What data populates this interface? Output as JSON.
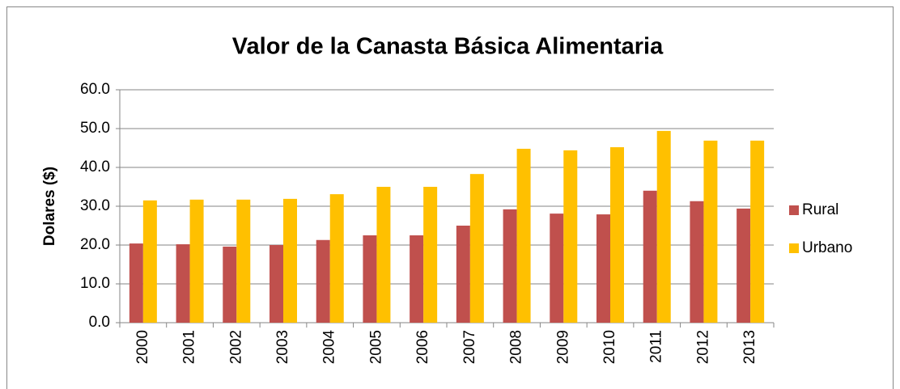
{
  "chart_data": {
    "type": "bar",
    "title": "Valor de la Canasta Básica Alimentaria",
    "y_label": "Dolares ($)",
    "categories": [
      "2000",
      "2001",
      "2002",
      "2003",
      "2004",
      "2005",
      "2006",
      "2007",
      "2008",
      "2009",
      "2010",
      "2011",
      "2012",
      "2013"
    ],
    "series": [
      {
        "name": "Rural",
        "color": "#c0504d",
        "values": [
          20.4,
          20.2,
          19.6,
          20.0,
          21.3,
          22.5,
          22.5,
          25.0,
          29.2,
          28.1,
          27.9,
          34.0,
          31.3,
          29.4
        ]
      },
      {
        "name": "Urbano",
        "color": "#ffc000",
        "values": [
          31.5,
          31.7,
          31.7,
          31.9,
          33.1,
          35.0,
          35.0,
          38.3,
          44.8,
          44.4,
          45.2,
          49.4,
          46.9,
          46.9
        ]
      }
    ],
    "ylim": [
      0,
      60
    ],
    "yticks": [
      {
        "value": 0,
        "label": "0.0"
      },
      {
        "value": 10,
        "label": "10.0"
      },
      {
        "value": 20,
        "label": "20.0"
      },
      {
        "value": 30,
        "label": "30.0"
      },
      {
        "value": 40,
        "label": "40.0"
      },
      {
        "value": 50,
        "label": "50.0"
      },
      {
        "value": 60,
        "label": "60.0"
      }
    ],
    "grid": true,
    "legend": "right"
  }
}
